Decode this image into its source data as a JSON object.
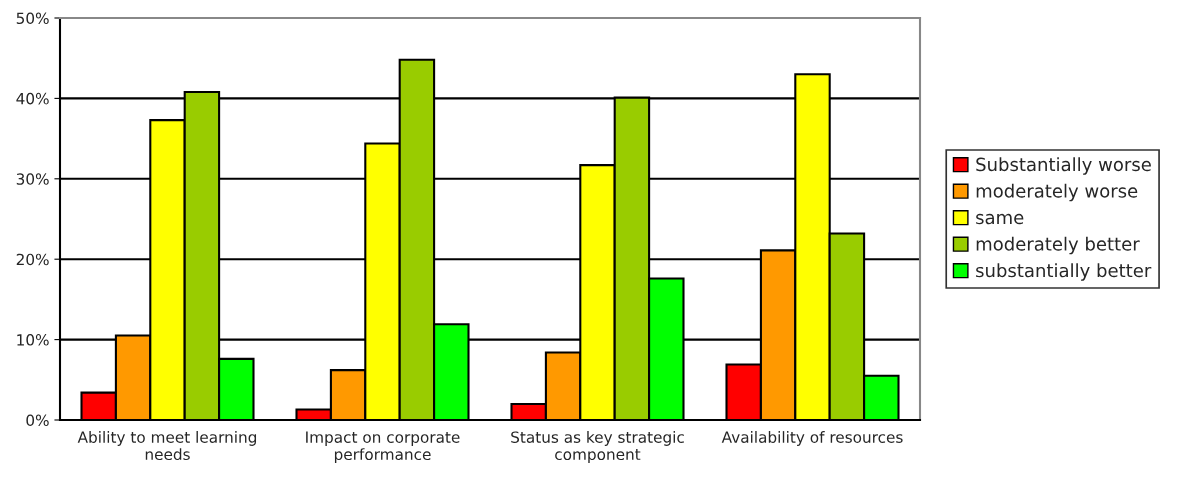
{
  "chart_data": {
    "type": "bar",
    "categories": [
      "Ability to meet learning\nneeds",
      "Impact on corporate\nperformance",
      "Status as key strategic\ncomponent",
      "Availability of resources"
    ],
    "series": [
      {
        "name": "Substantially worse",
        "color": "#ff0000",
        "values": [
          3.4,
          1.3,
          2.0,
          6.9
        ]
      },
      {
        "name": "moderately worse",
        "color": "#ff9900",
        "values": [
          10.5,
          6.2,
          8.4,
          21.1
        ]
      },
      {
        "name": "same",
        "color": "#ffff00",
        "values": [
          37.3,
          34.4,
          31.7,
          43.0
        ]
      },
      {
        "name": "moderately better",
        "color": "#99cc00",
        "values": [
          40.8,
          44.8,
          40.1,
          23.2
        ]
      },
      {
        "name": "substantially better",
        "color": "#00ff00",
        "values": [
          7.6,
          11.9,
          17.6,
          5.5
        ]
      }
    ],
    "ylim": [
      0,
      50
    ],
    "yticks": [
      {
        "value": 0,
        "label": "0%"
      },
      {
        "value": 10,
        "label": "10%"
      },
      {
        "value": 20,
        "label": "20%"
      },
      {
        "value": 30,
        "label": "30%"
      },
      {
        "value": 40,
        "label": "40%"
      },
      {
        "value": 50,
        "label": "50%"
      }
    ],
    "grid": "y",
    "legend": "right"
  }
}
